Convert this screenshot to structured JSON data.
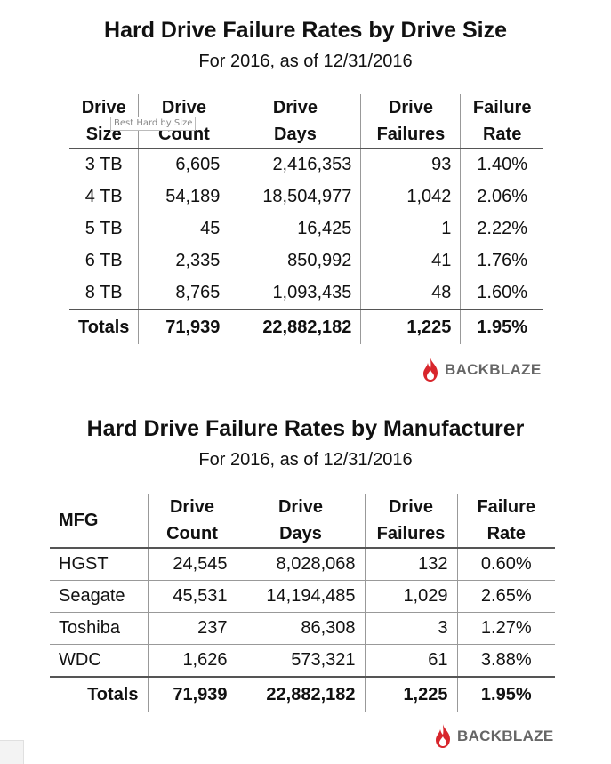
{
  "table1": {
    "title": "Hard Drive Failure Rates by Drive Size",
    "subtitle": "For 2016, as of 12/31/2016",
    "headers": [
      [
        "Drive",
        "Size"
      ],
      [
        "Drive",
        "Count"
      ],
      [
        "Drive",
        "Days"
      ],
      [
        "Drive",
        "Failures"
      ],
      [
        "Failure",
        "Rate"
      ]
    ],
    "rows": [
      [
        "3 TB",
        "6,605",
        "2,416,353",
        "93",
        "1.40%"
      ],
      [
        "4 TB",
        "54,189",
        "18,504,977",
        "1,042",
        "2.06%"
      ],
      [
        "5 TB",
        "45",
        "16,425",
        "1",
        "2.22%"
      ],
      [
        "6 TB",
        "2,335",
        "850,992",
        "41",
        "1.76%"
      ],
      [
        "8 TB",
        "8,765",
        "1,093,435",
        "48",
        "1.60%"
      ]
    ],
    "totals": [
      "Totals",
      "71,939",
      "22,882,182",
      "1,225",
      "1.95%"
    ],
    "tooltip": "Best Hard by Size",
    "logo_text": "BACKBLAZE"
  },
  "table2": {
    "title": "Hard Drive Failure Rates by Manufacturer",
    "subtitle": "For 2016, as of 12/31/2016",
    "headers": [
      [
        "MFG",
        ""
      ],
      [
        "Drive",
        "Count"
      ],
      [
        "Drive",
        "Days"
      ],
      [
        "Drive",
        "Failures"
      ],
      [
        "Failure",
        "Rate"
      ]
    ],
    "rows": [
      [
        "HGST",
        "24,545",
        "8,028,068",
        "132",
        "0.60%"
      ],
      [
        "Seagate",
        "45,531",
        "14,194,485",
        "1,029",
        "2.65%"
      ],
      [
        "Toshiba",
        "237",
        "86,308",
        "3",
        "1.27%"
      ],
      [
        "WDC",
        "1,626",
        "573,321",
        "61",
        "3.88%"
      ]
    ],
    "totals": [
      "Totals",
      "71,939",
      "22,882,182",
      "1,225",
      "1.95%"
    ],
    "logo_text": "BACKBLAZE"
  },
  "colors": {
    "logo_flame": "#d8262c",
    "logo_text": "#666666",
    "rule": "#555555"
  }
}
